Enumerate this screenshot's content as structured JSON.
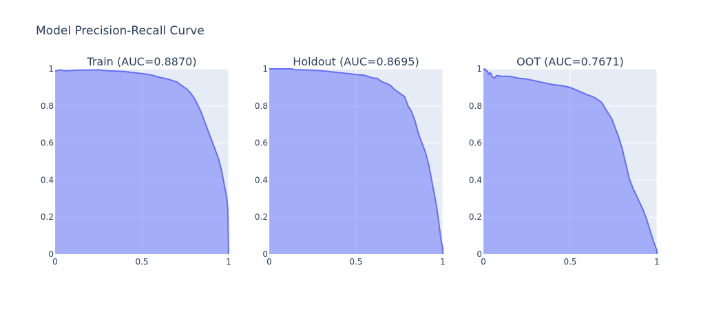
{
  "chart": {
    "title": "Model Precision-Recall Curve"
  },
  "chart_data": [
    {
      "type": "area",
      "title": "Train (AUC=0.8870)",
      "xlabel": "",
      "ylabel": "",
      "xlim": [
        0,
        1
      ],
      "ylim": [
        0,
        1
      ],
      "xticks": [
        "0",
        "0.5",
        "1"
      ],
      "yticks": [
        "0",
        "0.2",
        "0.4",
        "0.6",
        "0.8",
        "1"
      ],
      "grid": true,
      "fill": "tozeroy",
      "line_color": "#636efa",
      "x": [
        0,
        0.01,
        0.03,
        0.05,
        0.08,
        0.12,
        0.16,
        0.2,
        0.25,
        0.3,
        0.35,
        0.4,
        0.45,
        0.5,
        0.55,
        0.6,
        0.65,
        0.7,
        0.73,
        0.76,
        0.78,
        0.8,
        0.82,
        0.84,
        0.86,
        0.88,
        0.9,
        0.92,
        0.94,
        0.96,
        0.97,
        0.98,
        0.99,
        0.995,
        1.0
      ],
      "y": [
        0.99,
        0.99,
        0.995,
        0.99,
        0.99,
        0.993,
        0.993,
        0.994,
        0.995,
        0.99,
        0.988,
        0.986,
        0.98,
        0.975,
        0.968,
        0.955,
        0.945,
        0.93,
        0.91,
        0.89,
        0.87,
        0.845,
        0.81,
        0.77,
        0.72,
        0.67,
        0.62,
        0.57,
        0.52,
        0.45,
        0.4,
        0.35,
        0.3,
        0.25,
        0.0
      ]
    },
    {
      "type": "area",
      "title": "Holdout (AUC=0.8695)",
      "xlabel": "",
      "ylabel": "",
      "xlim": [
        0,
        1
      ],
      "ylim": [
        0,
        1
      ],
      "xticks": [
        "0",
        "0.5",
        "1"
      ],
      "yticks": [
        "0",
        "0.2",
        "0.4",
        "0.6",
        "0.8",
        "1"
      ],
      "grid": true,
      "fill": "tozeroy",
      "line_color": "#636efa",
      "x": [
        0,
        0.05,
        0.1,
        0.13,
        0.15,
        0.2,
        0.25,
        0.3,
        0.35,
        0.4,
        0.45,
        0.5,
        0.55,
        0.6,
        0.62,
        0.65,
        0.68,
        0.7,
        0.72,
        0.75,
        0.78,
        0.8,
        0.82,
        0.84,
        0.86,
        0.88,
        0.9,
        0.92,
        0.94,
        0.96,
        0.97,
        0.98,
        0.99,
        1.0,
        1.0
      ],
      "y": [
        1.0,
        1.0,
        1.0,
        1.0,
        0.995,
        0.995,
        0.993,
        0.99,
        0.985,
        0.98,
        0.975,
        0.97,
        0.965,
        0.95,
        0.95,
        0.93,
        0.92,
        0.91,
        0.89,
        0.87,
        0.85,
        0.8,
        0.77,
        0.72,
        0.65,
        0.6,
        0.55,
        0.48,
        0.38,
        0.28,
        0.22,
        0.15,
        0.08,
        0.03,
        0.0
      ]
    },
    {
      "type": "area",
      "title": "OOT (AUC=0.7671)",
      "xlabel": "",
      "ylabel": "",
      "xlim": [
        0,
        1
      ],
      "ylim": [
        0,
        1
      ],
      "xticks": [
        "0",
        "0.5",
        "1"
      ],
      "yticks": [
        "0",
        "0.2",
        "0.4",
        "0.6",
        "0.8",
        "1"
      ],
      "grid": true,
      "fill": "tozeroy",
      "line_color": "#636efa",
      "x": [
        0,
        0.005,
        0.01,
        0.015,
        0.02,
        0.025,
        0.03,
        0.04,
        0.05,
        0.06,
        0.08,
        0.1,
        0.15,
        0.2,
        0.25,
        0.3,
        0.35,
        0.4,
        0.45,
        0.5,
        0.55,
        0.6,
        0.63,
        0.65,
        0.68,
        0.7,
        0.72,
        0.74,
        0.76,
        0.78,
        0.8,
        0.82,
        0.84,
        0.86,
        0.88,
        0.9,
        0.92,
        0.94,
        0.96,
        0.98,
        1.0,
        1.0
      ],
      "y": [
        1.0,
        0.995,
        1.0,
        0.99,
        0.99,
        0.985,
        0.97,
        0.98,
        0.96,
        0.95,
        0.965,
        0.96,
        0.96,
        0.95,
        0.945,
        0.935,
        0.925,
        0.915,
        0.91,
        0.9,
        0.88,
        0.86,
        0.85,
        0.84,
        0.82,
        0.79,
        0.76,
        0.73,
        0.68,
        0.63,
        0.57,
        0.49,
        0.41,
        0.36,
        0.32,
        0.28,
        0.24,
        0.19,
        0.13,
        0.07,
        0.02,
        0.0
      ]
    }
  ]
}
